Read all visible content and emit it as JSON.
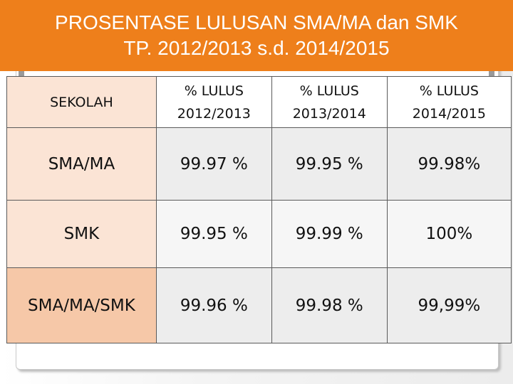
{
  "title": {
    "line1": "PROSENTASE LULUSAN SMA/MA dan SMK",
    "line2": "TP. 2012/2013 s.d. 2014/2015"
  },
  "colors": {
    "title_bar": "#ee7f1b",
    "label_cell": "#fbe4d5",
    "label_cell_dark": "#f6c8a8",
    "value_cell": "#ededed"
  },
  "table": {
    "headers": [
      {
        "line1": "SEKOLAH",
        "line2": ""
      },
      {
        "line1": "% LULUS",
        "line2": "2012/2013"
      },
      {
        "line1": "% LULUS",
        "line2": "2013/2014"
      },
      {
        "line1": "% LULUS",
        "line2": "2014/2015"
      }
    ],
    "rows": [
      {
        "sekolah": "SMA/MA",
        "y2012": "99.97 %",
        "y2013": "99.95 %",
        "y2014": "99.98%"
      },
      {
        "sekolah": "SMK",
        "y2012": "99.95 %",
        "y2013": "99.99 %",
        "y2014": "100%"
      },
      {
        "sekolah": "SMA/MA/SMK",
        "y2012": "99.96 %",
        "y2013": "99.98 %",
        "y2014": "99,99%"
      }
    ]
  }
}
